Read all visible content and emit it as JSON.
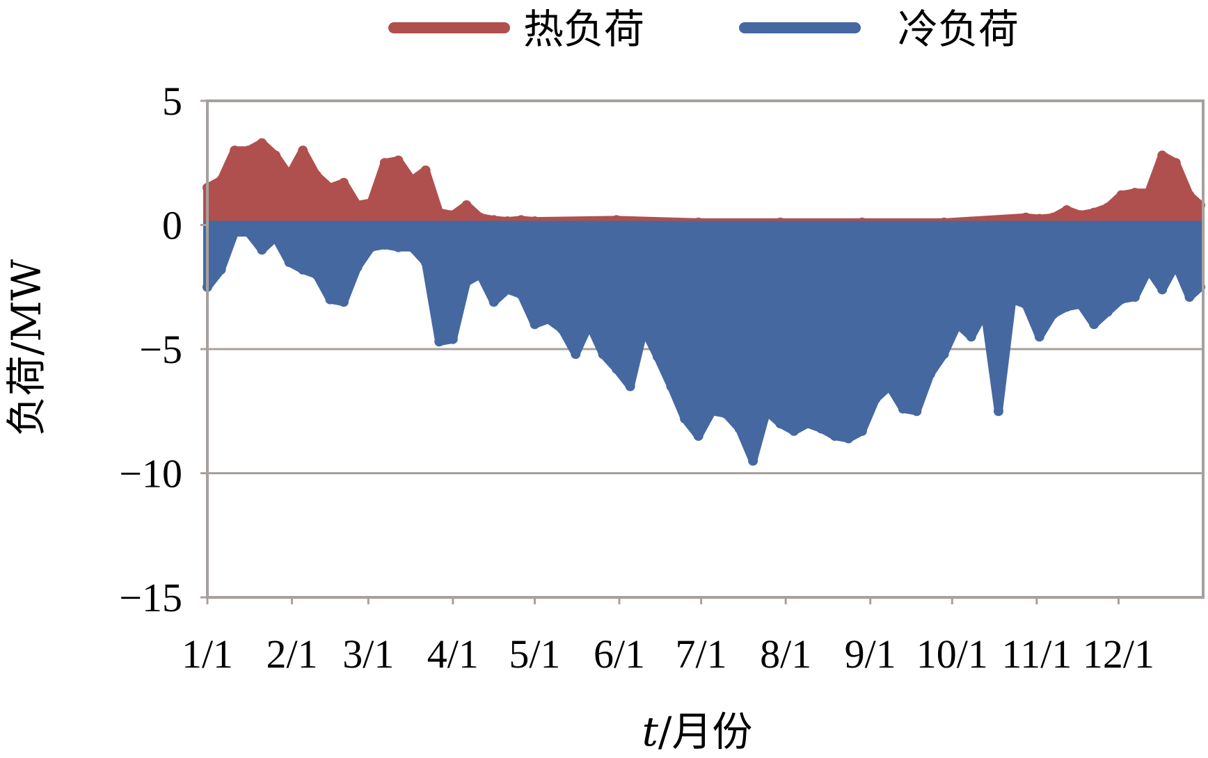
{
  "chart_data": {
    "type": "area",
    "title": "",
    "xlabel_italic": "t",
    "xlabel_rest": "/月份",
    "ylabel": "负荷/MW",
    "ylim": [
      -15,
      5
    ],
    "yticks": [
      5,
      0,
      -5,
      -10,
      -15
    ],
    "ytick_labels": [
      "5",
      "0",
      "−5",
      "−10",
      "−15"
    ],
    "xlim": [
      0,
      365
    ],
    "x_tick_labels": [
      "1/1",
      "2/1",
      "3/1",
      "4/1",
      "5/1",
      "6/1",
      "7/1",
      "8/1",
      "9/1",
      "10/1",
      "11/1",
      "12/1"
    ],
    "x_tick_days": [
      0,
      31,
      59,
      90,
      120,
      151,
      181,
      212,
      243,
      273,
      304,
      334
    ],
    "grid": true,
    "legend_position": "top-center",
    "series": [
      {
        "name": "热负荷",
        "color": "#b0504e",
        "x": [
          0,
          5,
          10,
          15,
          20,
          25,
          30,
          35,
          40,
          45,
          50,
          55,
          60,
          65,
          70,
          75,
          80,
          85,
          90,
          95,
          100,
          105,
          110,
          115,
          120,
          150,
          180,
          210,
          240,
          270,
          300,
          305,
          310,
          315,
          320,
          325,
          330,
          335,
          340,
          345,
          350,
          355,
          360,
          364
        ],
        "values": [
          1.5,
          1.8,
          3.0,
          3.0,
          3.3,
          2.8,
          2.0,
          3.0,
          2.0,
          1.5,
          1.7,
          0.8,
          0.9,
          2.5,
          2.6,
          1.8,
          2.2,
          0.5,
          0.4,
          0.8,
          0.3,
          0.2,
          0.15,
          0.2,
          0.15,
          0.2,
          0.1,
          0.1,
          0.1,
          0.1,
          0.3,
          0.25,
          0.3,
          0.6,
          0.4,
          0.5,
          0.7,
          1.2,
          1.3,
          1.3,
          2.8,
          2.5,
          1.2,
          0.8
        ]
      },
      {
        "name": "冷负荷",
        "color": "#4568a1",
        "x": [
          0,
          5,
          10,
          15,
          20,
          25,
          30,
          35,
          40,
          45,
          50,
          55,
          60,
          65,
          70,
          75,
          80,
          85,
          90,
          95,
          100,
          105,
          110,
          115,
          120,
          125,
          130,
          135,
          140,
          145,
          150,
          155,
          160,
          165,
          170,
          175,
          180,
          185,
          190,
          195,
          200,
          205,
          210,
          215,
          220,
          225,
          230,
          235,
          240,
          245,
          250,
          255,
          260,
          265,
          270,
          275,
          280,
          285,
          290,
          295,
          300,
          305,
          310,
          315,
          320,
          325,
          330,
          335,
          340,
          345,
          350,
          355,
          360,
          364
        ],
        "values": [
          -2.5,
          -1.8,
          -0.3,
          -0.3,
          -1.0,
          -0.5,
          -1.5,
          -1.8,
          -2.0,
          -3.0,
          -3.1,
          -1.7,
          -0.9,
          -0.8,
          -0.9,
          -0.9,
          -1.5,
          -4.7,
          -4.6,
          -2.3,
          -2.0,
          -3.1,
          -2.6,
          -2.8,
          -4.0,
          -3.8,
          -4.2,
          -5.2,
          -4.0,
          -5.2,
          -5.8,
          -6.5,
          -4.2,
          -5.3,
          -6.5,
          -7.8,
          -8.5,
          -7.5,
          -7.6,
          -8.2,
          -9.5,
          -7.5,
          -8.0,
          -8.3,
          -8.0,
          -8.2,
          -8.5,
          -8.6,
          -8.3,
          -7.0,
          -6.5,
          -7.4,
          -7.5,
          -6.0,
          -5.2,
          -4.0,
          -4.5,
          -3.5,
          -7.5,
          -3.0,
          -3.2,
          -4.5,
          -3.6,
          -3.3,
          -3.2,
          -4.0,
          -3.5,
          -3.0,
          -2.9,
          -1.8,
          -2.6,
          -1.6,
          -2.9,
          -2.5
        ]
      }
    ]
  }
}
